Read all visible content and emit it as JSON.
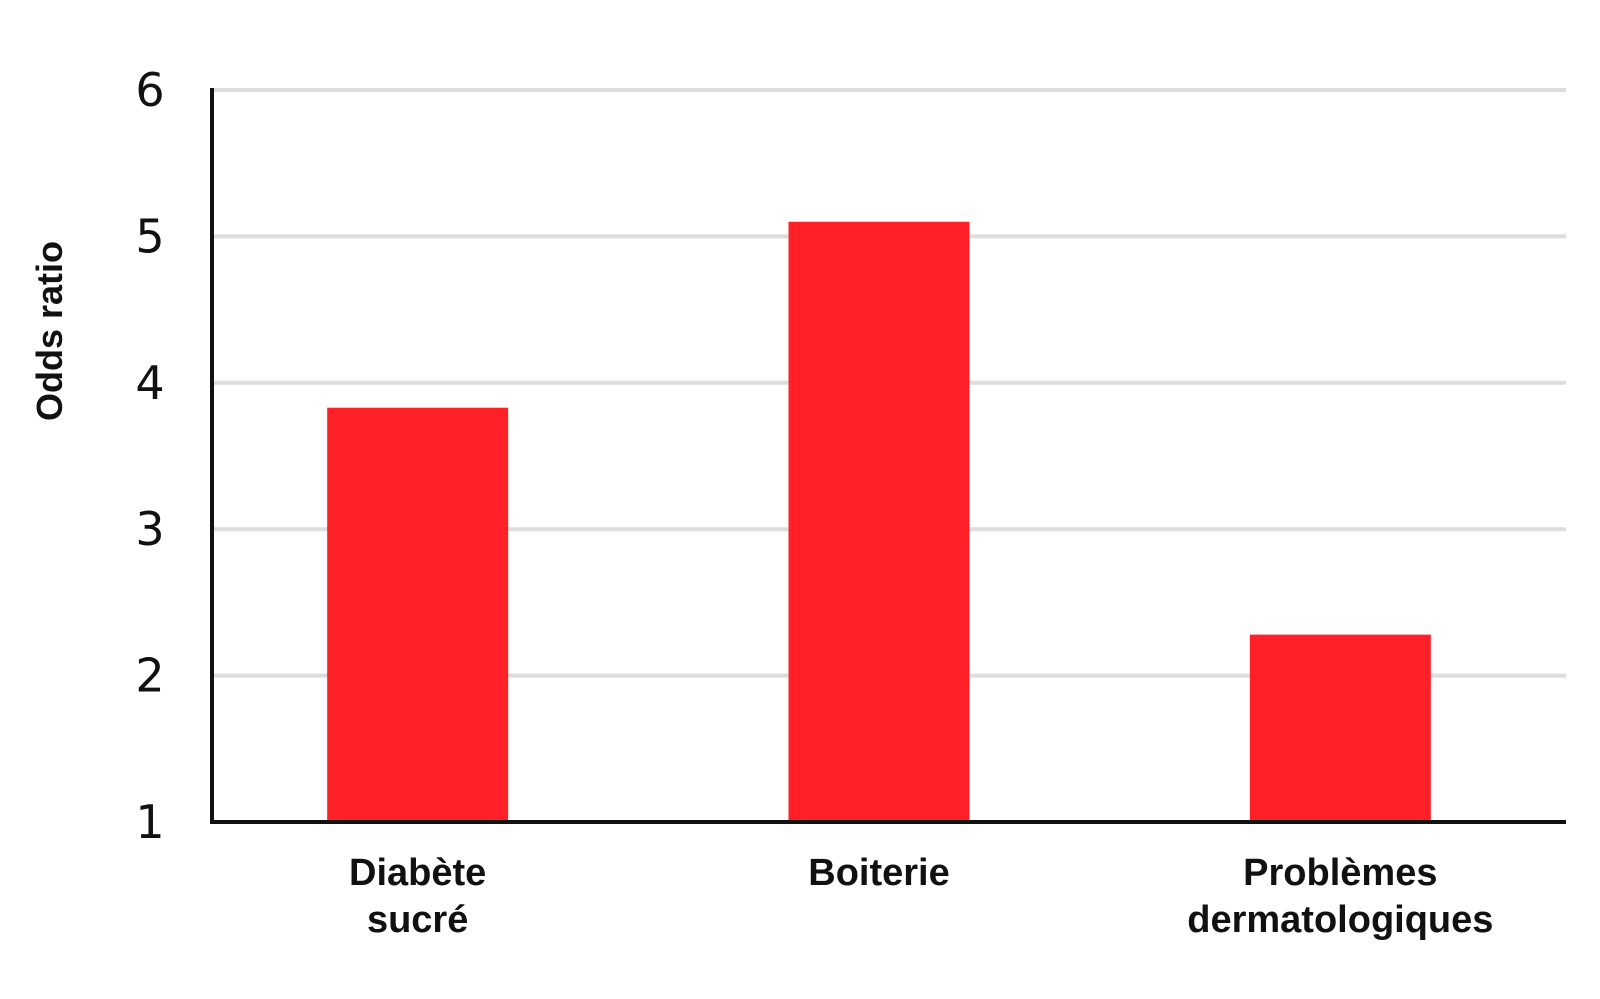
{
  "chart_data": {
    "type": "bar",
    "title": "",
    "xlabel": "",
    "ylabel": "Odds ratio",
    "categories": [
      [
        "Diabète",
        "sucré"
      ],
      [
        "Boiterie"
      ],
      [
        "Problèmes",
        "dermatologiques"
      ]
    ],
    "values": [
      3.83,
      5.1,
      2.28
    ],
    "ylim": [
      1,
      6
    ],
    "yticks": [
      1,
      2,
      3,
      4,
      5,
      6
    ],
    "ytick_labels": [
      "1",
      "2",
      "3",
      "4",
      "5",
      "6"
    ],
    "grid": true,
    "legend": "none",
    "colors": {
      "bar": "#ff2028",
      "grid": "#dddddd",
      "axis": "#111111"
    }
  }
}
